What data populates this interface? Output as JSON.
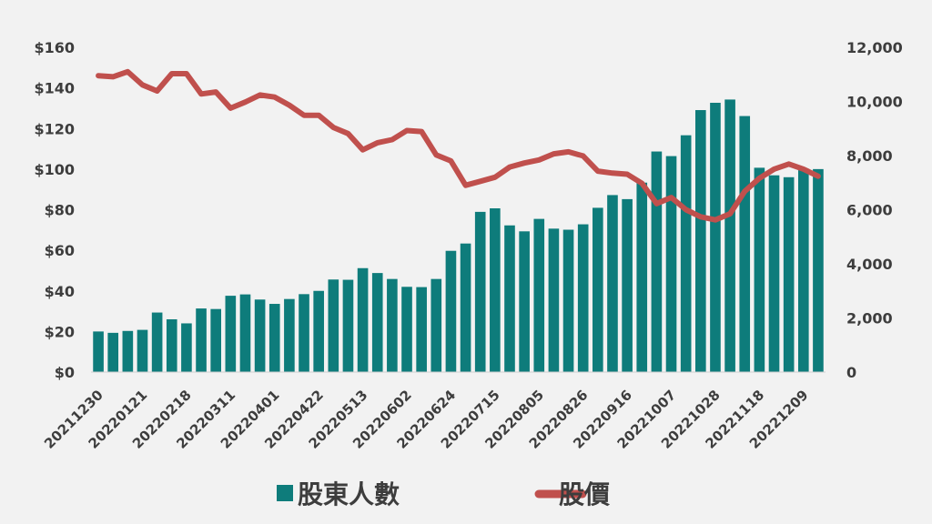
{
  "chart_data": {
    "type": "bar+line",
    "x_tick_labels": [
      "20211230",
      "20220121",
      "20220218",
      "20220311",
      "20220401",
      "20220422",
      "20220513",
      "20220602",
      "20220624",
      "20220715",
      "20220805",
      "20220826",
      "20220916",
      "20221007",
      "20221028",
      "20221118",
      "20221209"
    ],
    "left_axis": {
      "ylim": [
        0,
        160
      ],
      "ticks": [
        "$0",
        "$20",
        "$40",
        "$60",
        "$80",
        "$100",
        "$120",
        "$140",
        "$160"
      ]
    },
    "right_axis": {
      "ylim": [
        0,
        12000
      ],
      "ticks": [
        "0",
        "2,000",
        "4,000",
        "6,000",
        "8,000",
        "10,000",
        "12,000"
      ]
    },
    "series": [
      {
        "name": "股東人數",
        "type": "bar",
        "axis": "right",
        "color": "#0e7c7b",
        "values": [
          1500,
          1450,
          1520,
          1560,
          2200,
          1950,
          1800,
          2350,
          2330,
          2820,
          2870,
          2680,
          2520,
          2700,
          2880,
          3000,
          3420,
          3410,
          3840,
          3660,
          3440,
          3150,
          3140,
          3440,
          4480,
          4750,
          5920,
          6050,
          5420,
          5200,
          5660,
          5300,
          5260,
          5460,
          6070,
          6540,
          6390,
          7000,
          8150,
          7980,
          8750,
          9680,
          9950,
          10070,
          9460,
          7550,
          7270,
          7200,
          7460,
          7500
        ]
      },
      {
        "name": "股價",
        "type": "line",
        "axis": "left",
        "color": "#c0504d",
        "values": [
          146,
          145.5,
          148,
          141.5,
          138.5,
          147,
          147,
          137,
          138,
          130,
          133,
          136.5,
          135.5,
          131.5,
          126.5,
          126.5,
          120.5,
          117.5,
          109.5,
          113,
          114.5,
          119,
          118.5,
          107,
          104,
          92,
          94,
          96,
          101,
          103,
          104.5,
          107.5,
          108.5,
          106.5,
          99,
          98,
          97.5,
          93,
          83,
          86,
          80,
          76.5,
          75,
          78,
          89,
          95.5,
          100,
          102.5,
          100,
          96.5
        ]
      }
    ]
  }
}
